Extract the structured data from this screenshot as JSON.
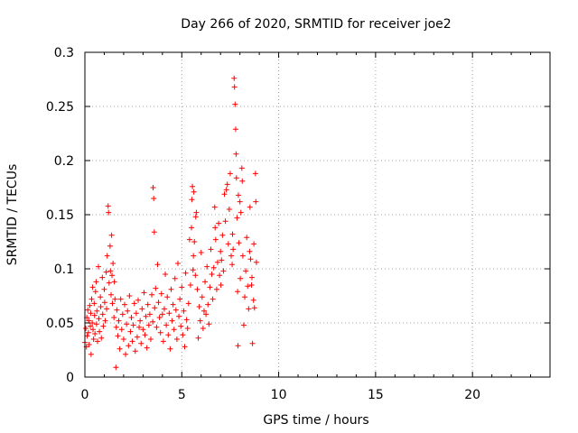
{
  "chart_data": {
    "type": "scatter",
    "title": "Day 266 of 2020, SRMTID for receiver joe2",
    "xlabel": "GPS time / hours",
    "ylabel": "SRMTID / TECUs",
    "xlim": [
      0,
      24
    ],
    "ylim": [
      0,
      0.3
    ],
    "x_ticks": [
      0,
      5,
      10,
      15,
      20
    ],
    "x_tick_labels": [
      "0",
      "5",
      "10",
      "15",
      "20"
    ],
    "y_ticks": [
      0,
      0.05,
      0.1,
      0.15,
      0.2,
      0.25,
      0.3
    ],
    "y_tick_labels": [
      "0",
      "0.05",
      "0.1",
      "0.15",
      "0.2",
      "0.25",
      "0.3"
    ],
    "grid": true,
    "marker": "+",
    "colors": {
      "series": "#ff0000",
      "axis": "#000000",
      "grid": "#a0a0a0"
    },
    "series": [
      {
        "name": "SRMTID",
        "x": [
          0.0,
          0.05,
          0.08,
          0.1,
          0.12,
          0.15,
          0.18,
          0.2,
          0.22,
          0.25,
          0.28,
          0.3,
          0.32,
          0.35,
          0.38,
          0.4,
          0.42,
          0.45,
          0.48,
          0.5,
          0.52,
          0.55,
          0.58,
          0.6,
          0.62,
          0.65,
          0.7,
          0.72,
          0.75,
          0.8,
          0.82,
          0.85,
          0.9,
          0.92,
          0.95,
          1.0,
          1.02,
          1.05,
          1.1,
          1.12,
          1.15,
          1.2,
          1.22,
          1.25,
          1.3,
          1.32,
          1.35,
          1.38,
          1.4,
          1.42,
          1.45,
          1.5,
          1.52,
          1.55,
          1.6,
          1.62,
          1.65,
          1.7,
          1.75,
          1.8,
          1.85,
          1.9,
          1.95,
          2.0,
          2.05,
          2.1,
          2.15,
          2.2,
          2.25,
          2.3,
          2.35,
          2.4,
          2.45,
          2.5,
          2.55,
          2.6,
          2.65,
          2.7,
          2.75,
          2.8,
          2.85,
          2.9,
          2.95,
          3.0,
          3.05,
          3.1,
          3.15,
          3.2,
          3.25,
          3.3,
          3.35,
          3.4,
          3.45,
          3.5,
          3.52,
          3.55,
          3.58,
          3.6,
          3.65,
          3.7,
          3.75,
          3.8,
          3.85,
          3.9,
          3.95,
          4.0,
          4.05,
          4.1,
          4.15,
          4.2,
          4.25,
          4.3,
          4.35,
          4.4,
          4.45,
          4.5,
          4.55,
          4.6,
          4.65,
          4.7,
          4.75,
          4.8,
          4.85,
          4.9,
          4.95,
          5.0,
          5.05,
          5.1,
          5.15,
          5.2,
          5.25,
          5.3,
          5.35,
          5.4,
          5.45,
          5.5,
          5.52,
          5.55,
          5.58,
          5.6,
          5.62,
          5.65,
          5.7,
          5.72,
          5.75,
          5.8,
          5.85,
          5.9,
          5.95,
          6.0,
          6.05,
          6.1,
          6.15,
          6.2,
          6.25,
          6.3,
          6.35,
          6.4,
          6.45,
          6.5,
          6.55,
          6.6,
          6.65,
          6.7,
          6.72,
          6.75,
          6.8,
          6.85,
          6.9,
          6.95,
          7.0,
          7.02,
          7.05,
          7.1,
          7.15,
          7.2,
          7.25,
          7.3,
          7.35,
          7.4,
          7.45,
          7.5,
          7.55,
          7.6,
          7.62,
          7.65,
          7.7,
          7.72,
          7.75,
          7.78,
          7.8,
          7.82,
          7.85,
          7.88,
          7.9,
          7.92,
          7.95,
          8.0,
          8.02,
          8.05,
          8.1,
          8.12,
          8.15,
          8.2,
          8.25,
          8.3,
          8.35,
          8.4,
          8.45,
          8.5,
          8.52,
          8.55,
          8.6,
          8.62,
          8.65,
          8.7,
          8.72,
          8.75,
          8.8,
          8.82,
          8.85
        ],
        "y": [
          0.032,
          0.045,
          0.028,
          0.055,
          0.038,
          0.062,
          0.041,
          0.052,
          0.03,
          0.066,
          0.047,
          0.059,
          0.021,
          0.072,
          0.05,
          0.083,
          0.044,
          0.035,
          0.068,
          0.057,
          0.04,
          0.079,
          0.088,
          0.049,
          0.061,
          0.033,
          0.102,
          0.054,
          0.042,
          0.074,
          0.065,
          0.036,
          0.092,
          0.058,
          0.047,
          0.081,
          0.069,
          0.052,
          0.097,
          0.063,
          0.112,
          0.158,
          0.152,
          0.087,
          0.121,
          0.098,
          0.076,
          0.131,
          0.094,
          0.068,
          0.105,
          0.055,
          0.088,
          0.072,
          0.009,
          0.046,
          0.062,
          0.038,
          0.052,
          0.026,
          0.072,
          0.044,
          0.058,
          0.035,
          0.067,
          0.021,
          0.049,
          0.061,
          0.029,
          0.075,
          0.042,
          0.055,
          0.033,
          0.048,
          0.068,
          0.024,
          0.059,
          0.037,
          0.071,
          0.046,
          0.052,
          0.031,
          0.063,
          0.044,
          0.078,
          0.039,
          0.056,
          0.027,
          0.067,
          0.048,
          0.058,
          0.035,
          0.076,
          0.051,
          0.175,
          0.165,
          0.134,
          0.064,
          0.082,
          0.046,
          0.104,
          0.069,
          0.055,
          0.041,
          0.077,
          0.058,
          0.033,
          0.063,
          0.095,
          0.048,
          0.074,
          0.039,
          0.059,
          0.026,
          0.081,
          0.052,
          0.067,
          0.044,
          0.091,
          0.062,
          0.035,
          0.105,
          0.056,
          0.072,
          0.047,
          0.083,
          0.039,
          0.061,
          0.028,
          0.096,
          0.053,
          0.045,
          0.068,
          0.127,
          0.085,
          0.138,
          0.164,
          0.176,
          0.099,
          0.112,
          0.171,
          0.125,
          0.094,
          0.148,
          0.152,
          0.081,
          0.036,
          0.065,
          0.052,
          0.115,
          0.074,
          0.045,
          0.061,
          0.088,
          0.058,
          0.102,
          0.067,
          0.049,
          0.083,
          0.118,
          0.095,
          0.072,
          0.101,
          0.157,
          0.138,
          0.127,
          0.081,
          0.106,
          0.142,
          0.094,
          0.116,
          0.085,
          0.108,
          0.131,
          0.098,
          0.169,
          0.144,
          0.173,
          0.178,
          0.123,
          0.155,
          0.188,
          0.112,
          0.104,
          0.132,
          0.118,
          0.276,
          0.268,
          0.252,
          0.229,
          0.206,
          0.184,
          0.147,
          0.079,
          0.029,
          0.168,
          0.124,
          0.162,
          0.091,
          0.152,
          0.193,
          0.181,
          0.112,
          0.048,
          0.074,
          0.098,
          0.129,
          0.084,
          0.063,
          0.116,
          0.157,
          0.109,
          0.085,
          0.092,
          0.031,
          0.071,
          0.123,
          0.064,
          0.188,
          0.162,
          0.106
        ]
      }
    ]
  }
}
